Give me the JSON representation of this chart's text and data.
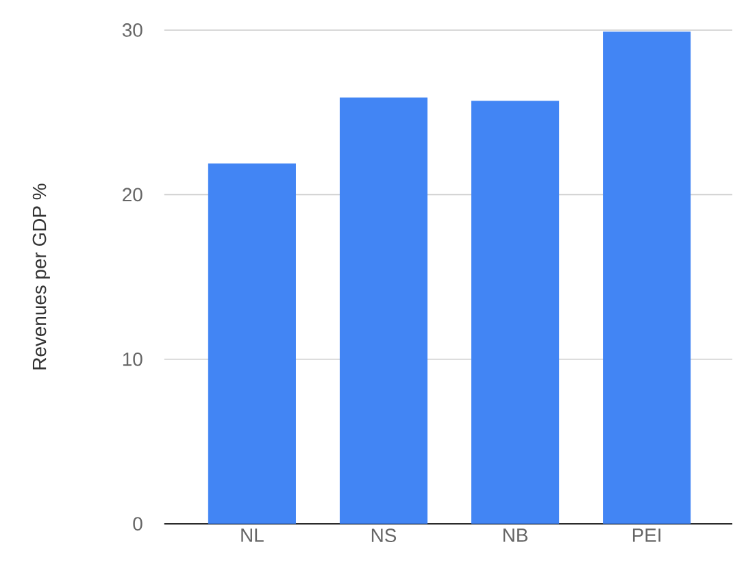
{
  "chart_data": {
    "type": "bar",
    "ylabel": "Revenues per GDP %",
    "categories": [
      "NL",
      "NS",
      "NB",
      "PEI"
    ],
    "values": [
      21.9,
      25.9,
      25.7,
      29.9
    ],
    "color": "#4285f4",
    "ylim": [
      0,
      30
    ],
    "yticks": [
      0,
      10,
      20,
      30
    ],
    "grid": "y"
  }
}
